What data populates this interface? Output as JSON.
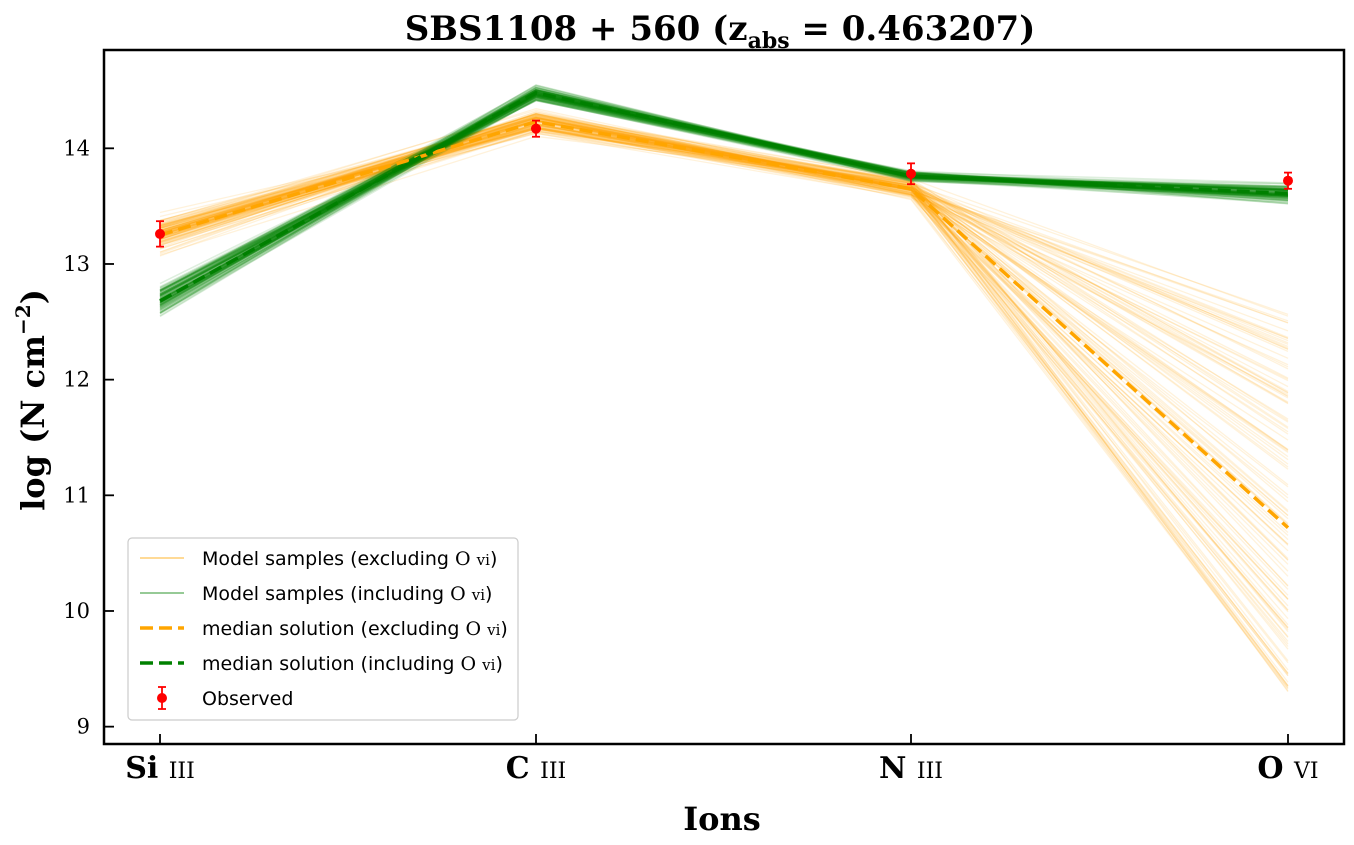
{
  "chart_data": {
    "type": "line",
    "title": "SBS1108 + 560 (z_abs = 0.463207)",
    "title_parts": {
      "main": "SBS1108 + 560 (z",
      "sub": "abs",
      "rest": " = 0.463207)"
    },
    "xlabel": "Ions",
    "ylabel": "log (N cm^-2)",
    "ylabel_parts": {
      "main": "log (N cm",
      "sup": "−2",
      "rest": ")"
    },
    "categories": [
      "Si III",
      "C III",
      "N III",
      "O VI"
    ],
    "category_parts": [
      {
        "el": "Si",
        "ion": "III"
      },
      {
        "el": "C",
        "ion": "III"
      },
      {
        "el": "N",
        "ion": "III"
      },
      {
        "el": "O",
        "ion": "VI"
      }
    ],
    "ylim": [
      8.85,
      14.85
    ],
    "yticks": [
      9,
      10,
      11,
      12,
      13,
      14
    ],
    "ytick_labels": [
      "9",
      "10",
      "11",
      "12",
      "13",
      "14"
    ],
    "legend_position": "lower-left",
    "colors": {
      "excluding": "#ffa500",
      "including": "#008000",
      "observed": "#ff0000"
    },
    "series": [
      {
        "name": "Model samples (excluding O VI)",
        "kind": "samples",
        "color": "#ffa500",
        "center": [
          13.25,
          14.23,
          13.65,
          10.75
        ],
        "spread": [
          0.12,
          0.08,
          0.07,
          1.5
        ]
      },
      {
        "name": "Model samples (including O VI)",
        "kind": "samples",
        "color": "#008000",
        "center": [
          12.68,
          14.48,
          13.76,
          13.61
        ],
        "spread": [
          0.1,
          0.05,
          0.04,
          0.06
        ]
      },
      {
        "name": "median solution (excluding O VI)",
        "kind": "median",
        "color": "#ffa500",
        "values": [
          13.25,
          14.23,
          13.65,
          10.72
        ]
      },
      {
        "name": "median solution (including O VI)",
        "kind": "median",
        "color": "#008000",
        "values": [
          12.68,
          14.48,
          13.76,
          13.61
        ]
      },
      {
        "name": "Observed",
        "kind": "observed",
        "color": "#ff0000",
        "values": [
          13.26,
          14.17,
          13.78,
          13.72
        ],
        "errors": [
          0.11,
          0.07,
          0.09,
          0.07
        ]
      }
    ],
    "legend": [
      {
        "main": "Model samples (excluding ",
        "el": "O",
        "ion": "VI",
        "tail": ")"
      },
      {
        "main": "Model samples (including ",
        "el": "O",
        "ion": "VI",
        "tail": ")"
      },
      {
        "main": "median solution (excluding ",
        "el": "O",
        "ion": "VI",
        "tail": ")"
      },
      {
        "main": "median solution (including ",
        "el": "O",
        "ion": "VI",
        "tail": ")"
      },
      {
        "main": "Observed",
        "el": "",
        "ion": "",
        "tail": ""
      }
    ]
  }
}
